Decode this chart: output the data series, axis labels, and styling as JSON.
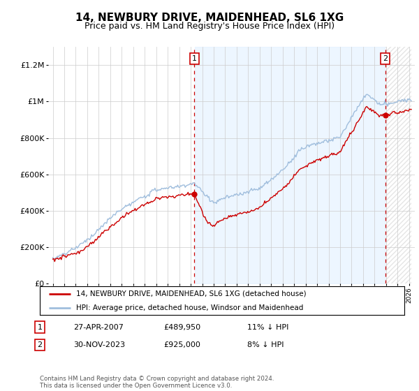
{
  "title": "14, NEWBURY DRIVE, MAIDENHEAD, SL6 1XG",
  "subtitle": "Price paid vs. HM Land Registry's House Price Index (HPI)",
  "title_fontsize": 11,
  "subtitle_fontsize": 9,
  "hpi_color": "#a0bedd",
  "price_color": "#cc0000",
  "annotation_box_color": "#cc0000",
  "ylim": [
    0,
    1300000
  ],
  "yticks": [
    0,
    200000,
    400000,
    600000,
    800000,
    1000000,
    1200000
  ],
  "ytick_labels": [
    "£0",
    "£200K",
    "£400K",
    "£600K",
    "£800K",
    "£1M",
    "£1.2M"
  ],
  "sale1_year": 2007.32,
  "sale1_y": 489950,
  "sale2_year": 2023.92,
  "sale2_y": 925000,
  "xmin": 1995.0,
  "xmax": 2026.5,
  "legend_label1": "14, NEWBURY DRIVE, MAIDENHEAD, SL6 1XG (detached house)",
  "legend_label2": "HPI: Average price, detached house, Windsor and Maidenhead",
  "table_row1": [
    "1",
    "27-APR-2007",
    "£489,950",
    "11% ↓ HPI"
  ],
  "table_row2": [
    "2",
    "30-NOV-2023",
    "£925,000",
    "8% ↓ HPI"
  ],
  "footnote": "Contains HM Land Registry data © Crown copyright and database right 2024.\nThis data is licensed under the Open Government Licence v3.0.",
  "bg_color": "#ffffff",
  "grid_color": "#cccccc",
  "shade_between_color": "#ddeeff",
  "hatch_color": "#cccccc"
}
